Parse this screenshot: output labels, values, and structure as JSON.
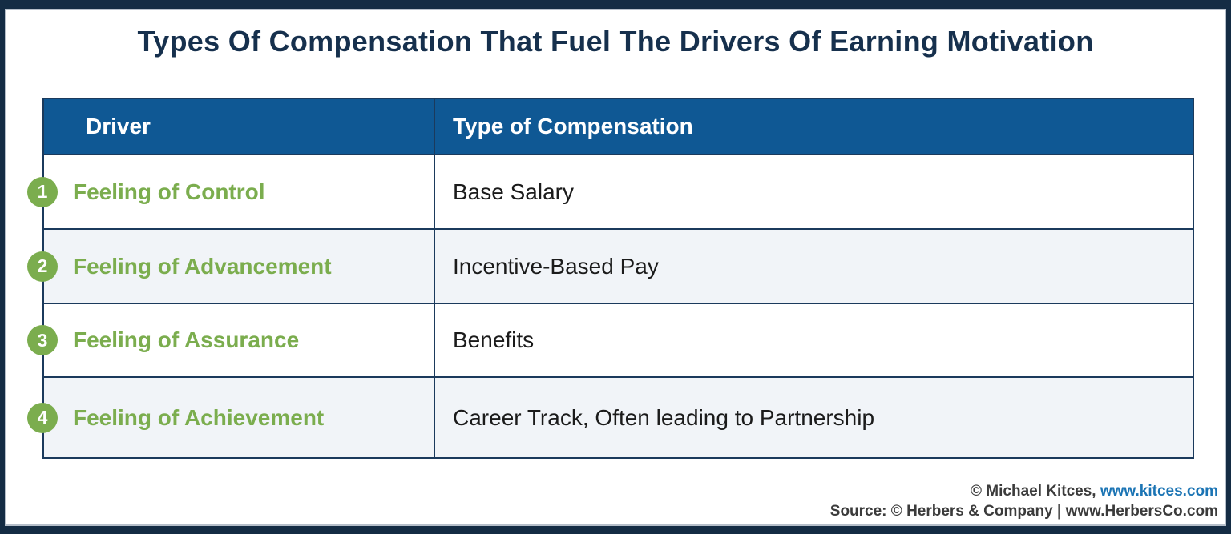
{
  "page": {
    "title": "Types Of Compensation That Fuel The Drivers Of Earning Motivation"
  },
  "table": {
    "headers": {
      "driver": "Driver",
      "compensation": "Type of Compensation"
    },
    "rows": [
      {
        "num": "1",
        "driver": "Feeling of Control",
        "compensation": "Base Salary"
      },
      {
        "num": "2",
        "driver": "Feeling of Advancement",
        "compensation": "Incentive-Based Pay"
      },
      {
        "num": "3",
        "driver": "Feeling of Assurance",
        "compensation": "Benefits"
      },
      {
        "num": "4",
        "driver": "Feeling of Achievement",
        "compensation": "Career Track, Often leading to Partnership"
      }
    ]
  },
  "footer": {
    "credit_prefix": "© Michael Kitces, ",
    "credit_link": "www.kitces.com",
    "source_line": "Source: © Herbers & Company | www.HerbersCo.com"
  },
  "colors": {
    "navy": "#142c44",
    "table_line": "#1b3a5c",
    "header_blue": "#0f5894",
    "green": "#7bad4e",
    "row_alt": "#f1f4f8",
    "link_blue": "#1b74b4",
    "footer_text": "#3b3b3b",
    "title_navy": "#16304d"
  }
}
